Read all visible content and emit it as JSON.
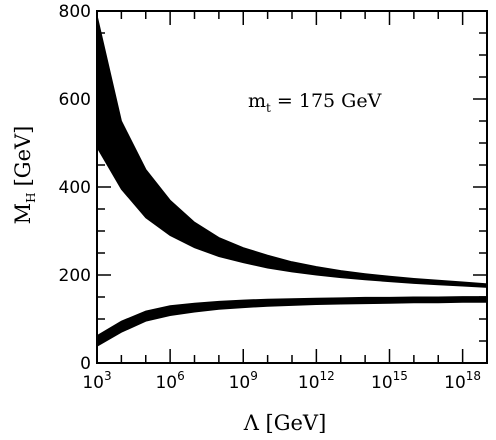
{
  "chart_data": {
    "type": "area",
    "title": "",
    "xlabel": "Λ [GeV]",
    "ylabel": {
      "main": "M",
      "sub": "H",
      "unit": "[GeV]"
    },
    "x_scale": "log10",
    "xlim": [
      1000,
      1e+19
    ],
    "ylim": [
      0,
      800
    ],
    "x_ticks": [
      {
        "value": 1000,
        "base": "10",
        "exp": "3"
      },
      {
        "value": 1000000.0,
        "base": "10",
        "exp": "6"
      },
      {
        "value": 1000000000.0,
        "base": "10",
        "exp": "9"
      },
      {
        "value": 1000000000000.0,
        "base": "10",
        "exp": "12"
      },
      {
        "value": 1000000000000000.0,
        "base": "10",
        "exp": "15"
      },
      {
        "value": 1e+18,
        "base": "10",
        "exp": "18"
      }
    ],
    "y_ticks": [
      0,
      200,
      400,
      600,
      800
    ],
    "annotation": {
      "main": "m",
      "sub": "t",
      "rest": " = 175 GeV"
    },
    "bands": [
      {
        "role": "upper bound",
        "x": [
          1000,
          10000.0,
          100000.0,
          1000000.0,
          10000000.0,
          100000000.0,
          1000000000.0,
          10000000000.0,
          100000000000.0,
          1000000000000.0,
          10000000000000.0,
          100000000000000.0,
          1000000000000000.0,
          1e+16,
          1e+17,
          1e+18,
          1e+19
        ],
        "low": [
          490,
          395,
          330,
          290,
          262,
          242,
          228,
          216,
          207,
          200,
          194,
          189,
          185,
          181,
          178,
          175,
          172
        ],
        "high": [
          790,
          550,
          440,
          370,
          320,
          285,
          262,
          245,
          230,
          219,
          210,
          203,
          197,
          192,
          188,
          184,
          180
        ]
      },
      {
        "role": "lower bound",
        "x": [
          1000,
          10000.0,
          100000.0,
          1000000.0,
          10000000.0,
          100000000.0,
          1000000000.0,
          10000000000.0,
          100000000000.0,
          1000000000000.0,
          10000000000000.0,
          100000000000000.0,
          1000000000000000.0,
          1e+16,
          1e+17,
          1e+18,
          1e+19
        ],
        "low": [
          38,
          70,
          95,
          108,
          116,
          122,
          126,
          129,
          131,
          133,
          134,
          135,
          136,
          137,
          137,
          138,
          138
        ],
        "high": [
          62,
          95,
          118,
          130,
          136,
          140,
          143,
          145,
          146,
          147,
          148,
          149,
          149,
          150,
          150,
          151,
          151
        ]
      }
    ]
  }
}
